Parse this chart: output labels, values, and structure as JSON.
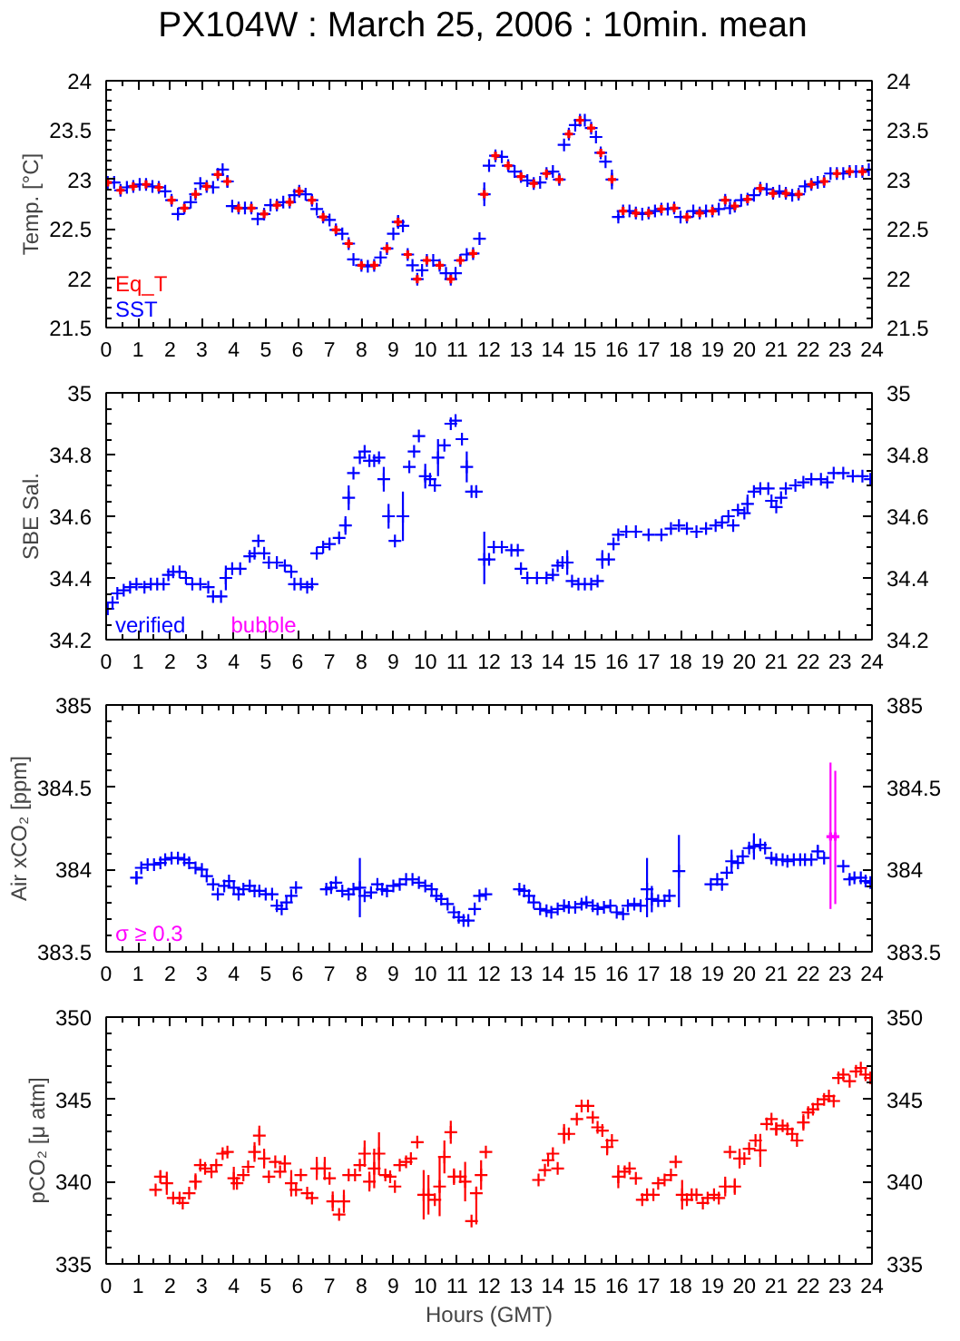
{
  "chart_data": [
    {
      "type": "scatter",
      "title": "PX104W : March 25, 2006 : 10min. mean",
      "ylabel": "Temp. [°C]",
      "xlim": [
        0,
        24
      ],
      "xticks": [
        0,
        1,
        2,
        3,
        4,
        5,
        6,
        7,
        8,
        9,
        10,
        11,
        12,
        13,
        14,
        15,
        16,
        17,
        18,
        19,
        20,
        21,
        22,
        23,
        24
      ],
      "ylim": [
        21.5,
        24
      ],
      "yticks": [
        21.5,
        22,
        22.5,
        23,
        23.5,
        24
      ],
      "y2lim": [
        21.5,
        24
      ],
      "y2ticks": [
        21.5,
        22,
        22.5,
        23,
        23.5,
        24
      ],
      "legend": "bottom left",
      "series": [
        {
          "name": "SST",
          "color": "#0000ff",
          "marker": "cross",
          "x": [
            0.05,
            0.25,
            0.45,
            0.65,
            0.85,
            1.05,
            1.25,
            1.45,
            1.65,
            1.85,
            2.05,
            2.25,
            2.45,
            2.65,
            2.8,
            2.95,
            3.15,
            3.35,
            3.5,
            3.65,
            3.8,
            3.95,
            4.15,
            4.35,
            4.55,
            4.75,
            4.95,
            5.15,
            5.35,
            5.55,
            5.75,
            5.9,
            6.05,
            6.25,
            6.45,
            6.6,
            6.8,
            7.0,
            7.2,
            7.4,
            7.6,
            7.75,
            8.0,
            8.2,
            8.4,
            8.6,
            8.8,
            9.0,
            9.15,
            9.3,
            9.45,
            9.6,
            9.75,
            9.9,
            10.05,
            10.25,
            10.45,
            10.65,
            10.8,
            10.95,
            11.1,
            11.3,
            11.5,
            11.7,
            11.85,
            12.0,
            12.2,
            12.4,
            12.6,
            12.8,
            13.0,
            13.2,
            13.4,
            13.6,
            13.8,
            14.0,
            14.2,
            14.35,
            14.5,
            14.7,
            14.85,
            15.0,
            15.2,
            15.35,
            15.5,
            15.65,
            15.85,
            16.05,
            16.2,
            16.4,
            16.6,
            16.8,
            17.0,
            17.2,
            17.4,
            17.6,
            17.8,
            18.0,
            18.2,
            18.4,
            18.6,
            18.8,
            19.0,
            19.2,
            19.4,
            19.55,
            19.7,
            19.9,
            20.1,
            20.3,
            20.5,
            20.7,
            20.9,
            21.1,
            21.3,
            21.5,
            21.7,
            21.9,
            22.1,
            22.3,
            22.5,
            22.7,
            22.9,
            23.1,
            23.3,
            23.5,
            23.7,
            23.9
          ],
          "values": [
            22.97,
            22.97,
            22.89,
            22.92,
            22.93,
            22.95,
            22.95,
            22.93,
            22.92,
            22.88,
            22.79,
            22.65,
            22.71,
            22.77,
            22.85,
            22.96,
            22.93,
            22.92,
            23.05,
            23.1,
            22.98,
            22.73,
            22.71,
            22.71,
            22.71,
            22.6,
            22.65,
            22.74,
            22.74,
            22.77,
            22.77,
            22.84,
            22.88,
            22.85,
            22.79,
            22.7,
            22.62,
            22.59,
            22.49,
            22.45,
            22.35,
            22.19,
            22.13,
            22.12,
            22.13,
            22.21,
            22.3,
            22.45,
            22.57,
            22.53,
            22.24,
            22.13,
            21.99,
            22.08,
            22.18,
            22.18,
            22.13,
            22.05,
            21.99,
            22.05,
            22.18,
            22.24,
            22.25,
            22.4,
            22.85,
            23.14,
            23.24,
            23.23,
            23.14,
            23.08,
            23.03,
            22.99,
            22.96,
            22.97,
            23.06,
            23.08,
            23.0,
            23.35,
            23.46,
            23.55,
            23.6,
            23.6,
            23.52,
            23.43,
            23.27,
            23.18,
            23.0,
            22.62,
            22.68,
            22.68,
            22.66,
            22.65,
            22.66,
            22.68,
            22.7,
            22.7,
            22.71,
            22.62,
            22.62,
            22.68,
            22.66,
            22.68,
            22.68,
            22.7,
            22.79,
            22.71,
            22.73,
            22.79,
            22.8,
            22.84,
            22.91,
            22.9,
            22.86,
            22.88,
            22.86,
            22.84,
            22.85,
            22.93,
            22.95,
            22.97,
            22.98,
            23.06,
            23.06,
            23.06,
            23.08,
            23.08,
            23.08,
            23.1
          ],
          "errors": [
            null,
            null,
            null,
            null,
            null,
            null,
            null,
            null,
            null,
            null,
            null,
            0.03,
            null,
            null,
            null,
            null,
            null,
            null,
            null,
            null,
            0.06,
            null,
            null,
            null,
            null,
            null,
            null,
            null,
            null,
            null,
            null,
            null,
            null,
            null,
            null,
            null,
            null,
            null,
            null,
            null,
            0.04,
            null,
            null,
            null,
            0.03,
            null,
            null,
            null,
            0.07,
            null,
            null,
            null,
            0.03,
            null,
            null,
            null,
            null,
            null,
            null,
            null,
            null,
            null,
            null,
            null,
            0.12,
            null,
            null,
            null,
            null,
            null,
            null,
            null,
            null,
            null,
            null,
            null,
            0.05,
            null,
            null,
            null,
            null,
            null,
            null,
            null,
            null,
            null,
            0.1,
            0.03,
            null,
            null,
            null,
            null,
            null,
            null,
            null,
            null,
            null,
            null,
            null,
            null,
            null,
            null,
            null,
            null,
            null,
            null,
            null,
            null,
            null,
            null,
            null,
            null,
            null,
            null,
            null,
            null,
            null,
            null,
            null,
            null,
            null,
            null,
            null,
            null,
            null,
            null,
            null,
            null
          ]
        },
        {
          "name": "Eq_T",
          "color": "#ff0000",
          "marker": "cross",
          "x": [
            0.05,
            0.45,
            0.85,
            1.25,
            1.65,
            2.05,
            2.45,
            2.8,
            3.15,
            3.5,
            3.8,
            4.15,
            4.55,
            4.95,
            5.35,
            5.75,
            6.05,
            6.45,
            6.8,
            7.2,
            7.6,
            8.0,
            8.4,
            8.8,
            9.15,
            9.45,
            9.75,
            10.05,
            10.45,
            10.8,
            11.1,
            11.5,
            11.85,
            12.2,
            12.6,
            13.0,
            13.4,
            13.8,
            14.2,
            14.5,
            14.85,
            15.2,
            15.5,
            15.85,
            16.2,
            16.6,
            17.0,
            17.4,
            17.8,
            18.2,
            18.6,
            19.0,
            19.4,
            19.7,
            20.1,
            20.5,
            20.9,
            21.3,
            21.7,
            22.1,
            22.5,
            22.9,
            23.3,
            23.7
          ],
          "values": [
            22.97,
            22.89,
            22.93,
            22.95,
            22.92,
            22.79,
            22.71,
            22.85,
            22.93,
            23.05,
            22.98,
            22.71,
            22.71,
            22.65,
            22.74,
            22.77,
            22.88,
            22.79,
            22.62,
            22.49,
            22.35,
            22.13,
            22.13,
            22.3,
            22.57,
            22.24,
            21.99,
            22.18,
            22.13,
            21.99,
            22.18,
            22.25,
            22.85,
            23.24,
            23.14,
            23.03,
            22.96,
            23.06,
            23.0,
            23.46,
            23.6,
            23.52,
            23.27,
            23.0,
            22.68,
            22.66,
            22.66,
            22.7,
            22.71,
            22.62,
            22.66,
            22.68,
            22.79,
            22.73,
            22.8,
            22.91,
            22.86,
            22.86,
            22.85,
            22.95,
            22.98,
            23.06,
            23.08,
            23.08
          ]
        }
      ]
    },
    {
      "type": "scatter",
      "ylabel": "SBE Sal.",
      "xlim": [
        0,
        24
      ],
      "xticks": [
        0,
        1,
        2,
        3,
        4,
        5,
        6,
        7,
        8,
        9,
        10,
        11,
        12,
        13,
        14,
        15,
        16,
        17,
        18,
        19,
        20,
        21,
        22,
        23,
        24
      ],
      "ylim": [
        34.2,
        35
      ],
      "yticks": [
        34.2,
        34.4,
        34.6,
        34.8,
        35
      ],
      "y2lim": [
        34.2,
        35
      ],
      "y2ticks": [
        34.2,
        34.4,
        34.6,
        34.8,
        35
      ],
      "legend": "bottom left",
      "series": [
        {
          "name": "bubble",
          "color": "#ff00ff",
          "marker": "cross"
        },
        {
          "name": "verified",
          "color": "#0000ff",
          "marker": "cross",
          "x": [
            0.05,
            0.2,
            0.35,
            0.55,
            0.75,
            0.95,
            1.2,
            1.4,
            1.6,
            1.8,
            1.95,
            2.1,
            2.3,
            2.5,
            2.7,
            2.95,
            3.2,
            3.35,
            3.6,
            3.75,
            3.95,
            4.2,
            4.5,
            4.65,
            4.77,
            4.95,
            5.1,
            5.35,
            5.6,
            5.8,
            5.9,
            6.1,
            6.3,
            6.45,
            6.6,
            6.8,
            7.0,
            7.3,
            7.5,
            7.6,
            7.75,
            7.95,
            8.1,
            8.25,
            8.4,
            8.55,
            8.7,
            8.85,
            9.05,
            9.3,
            9.5,
            9.65,
            9.8,
            10.0,
            10.15,
            10.3,
            10.4,
            10.6,
            10.8,
            10.95,
            11.15,
            11.3,
            11.45,
            11.6,
            11.85,
            12.0,
            12.15,
            12.4,
            12.7,
            12.9,
            13.0,
            13.2,
            13.5,
            13.8,
            14.0,
            14.15,
            14.3,
            14.45,
            14.6,
            14.8,
            15.0,
            15.2,
            15.4,
            15.55,
            15.75,
            15.9,
            16.05,
            16.3,
            16.6,
            17.0,
            17.4,
            17.7,
            17.95,
            18.2,
            18.5,
            18.8,
            19.1,
            19.3,
            19.5,
            19.65,
            19.8,
            20.0,
            20.1,
            20.3,
            20.5,
            20.75,
            20.85,
            21.0,
            21.15,
            21.3,
            21.6,
            21.85,
            22.1,
            22.4,
            22.6,
            22.8,
            23.1,
            23.4,
            23.7,
            23.95
          ],
          "values": [
            34.3,
            34.32,
            34.35,
            34.36,
            34.37,
            34.38,
            34.37,
            34.38,
            34.38,
            34.38,
            34.41,
            34.42,
            34.42,
            34.4,
            34.38,
            34.38,
            34.37,
            34.34,
            34.34,
            34.4,
            34.43,
            34.43,
            34.47,
            34.48,
            34.52,
            34.48,
            34.45,
            34.45,
            34.44,
            34.42,
            34.38,
            34.38,
            34.37,
            34.38,
            34.48,
            34.5,
            34.51,
            34.53,
            34.57,
            34.66,
            34.74,
            34.79,
            34.81,
            34.78,
            34.78,
            34.79,
            34.72,
            34.6,
            34.52,
            34.6,
            34.76,
            34.81,
            34.86,
            34.73,
            34.72,
            34.7,
            34.79,
            34.83,
            34.9,
            34.91,
            34.85,
            34.76,
            34.68,
            34.68,
            34.46,
            34.46,
            34.5,
            34.5,
            34.49,
            34.49,
            34.43,
            34.4,
            34.4,
            34.4,
            34.41,
            34.44,
            34.45,
            34.45,
            34.39,
            34.38,
            34.38,
            34.38,
            34.39,
            34.46,
            34.46,
            34.51,
            34.54,
            34.55,
            34.55,
            34.54,
            34.54,
            34.56,
            34.57,
            34.56,
            34.55,
            34.56,
            34.57,
            34.58,
            34.6,
            34.57,
            34.62,
            34.61,
            34.64,
            34.68,
            34.69,
            34.69,
            34.65,
            34.63,
            34.66,
            34.69,
            34.7,
            34.71,
            34.72,
            34.72,
            34.71,
            34.74,
            34.74,
            34.73,
            34.73,
            34.72
          ],
          "errors": [
            null,
            null,
            null,
            null,
            null,
            null,
            null,
            null,
            null,
            null,
            null,
            null,
            null,
            null,
            null,
            null,
            null,
            null,
            null,
            0.04,
            null,
            null,
            null,
            null,
            null,
            null,
            null,
            null,
            null,
            null,
            null,
            null,
            null,
            null,
            null,
            null,
            null,
            null,
            0.03,
            0.04,
            null,
            null,
            null,
            null,
            null,
            null,
            0.04,
            0.04,
            null,
            0.08,
            null,
            null,
            null,
            0.04,
            null,
            null,
            0.06,
            null,
            null,
            null,
            null,
            0.05,
            null,
            0.02,
            [
              34.38,
              34.55
            ],
            null,
            null,
            null,
            null,
            null,
            null,
            null,
            null,
            null,
            null,
            null,
            null,
            0.04,
            null,
            null,
            null,
            null,
            null,
            0.03,
            null,
            null,
            null,
            null,
            null,
            null,
            null,
            null,
            null,
            null,
            null,
            null,
            null,
            null,
            null,
            null,
            null,
            null,
            0.03,
            null,
            null,
            null,
            null,
            null,
            null,
            null,
            null,
            null,
            null,
            null,
            null,
            null,
            null,
            null,
            null,
            null
          ]
        }
      ]
    },
    {
      "type": "scatter",
      "ylabel": "Air xCO₂ [ppm]",
      "xlim": [
        0,
        24
      ],
      "xticks": [
        0,
        1,
        2,
        3,
        4,
        5,
        6,
        7,
        8,
        9,
        10,
        11,
        12,
        13,
        14,
        15,
        16,
        17,
        18,
        19,
        20,
        21,
        22,
        23,
        24
      ],
      "ylim": [
        383.5,
        385
      ],
      "yticks": [
        383.5,
        384,
        384.5,
        385
      ],
      "y2lim": [
        383.5,
        385
      ],
      "y2ticks": [
        383.5,
        384,
        384.5,
        385
      ],
      "legend": "bottom left",
      "series": [
        {
          "color": "#0000ff",
          "marker": "cross",
          "x": [
            0.95,
            1.1,
            1.3,
            1.5,
            1.7,
            1.85,
            2.05,
            2.25,
            2.45,
            2.6,
            2.8,
            3.0,
            3.15,
            3.35,
            3.5,
            3.7,
            3.85,
            4.0,
            4.15,
            4.3,
            4.5,
            4.65,
            4.8,
            5.0,
            5.2,
            5.35,
            5.5,
            5.65,
            5.8,
            5.95,
            6.9,
            7.05,
            7.2,
            7.4,
            7.6,
            7.75,
            7.95,
            8.1,
            8.3,
            8.5,
            8.65,
            8.8,
            9.0,
            9.2,
            9.4,
            9.6,
            9.8,
            10.0,
            10.2,
            10.35,
            10.5,
            10.7,
            10.9,
            11.05,
            11.2,
            11.35,
            11.55,
            11.7,
            11.9,
            12.95,
            13.1,
            13.25,
            13.4,
            13.6,
            13.8,
            13.95,
            14.15,
            14.35,
            14.5,
            14.7,
            14.9,
            15.05,
            15.25,
            15.4,
            15.6,
            15.8,
            16.0,
            16.2,
            16.35,
            16.55,
            16.75,
            16.95,
            17.1,
            17.3,
            17.5,
            17.65,
            17.95,
            18.95,
            19.15,
            19.3,
            19.45,
            19.6,
            19.8,
            19.95,
            20.15,
            20.3,
            20.5,
            20.65,
            20.85,
            21.0,
            21.2,
            21.35,
            21.55,
            21.75,
            21.9,
            22.1,
            22.3,
            22.5,
            23.1,
            23.3,
            23.45,
            23.65,
            23.8,
            23.95
          ],
          "values": [
            383.95,
            384.01,
            384.03,
            384.03,
            384.04,
            384.06,
            384.07,
            384.07,
            384.06,
            384.04,
            384.01,
            384.0,
            383.96,
            383.91,
            383.85,
            383.9,
            383.93,
            383.89,
            383.85,
            383.88,
            383.9,
            383.87,
            383.87,
            383.85,
            383.85,
            383.78,
            383.76,
            383.8,
            383.84,
            383.89,
            383.88,
            383.89,
            383.92,
            383.87,
            383.85,
            383.88,
            383.89,
            383.84,
            383.86,
            383.91,
            383.88,
            383.87,
            383.9,
            383.91,
            383.94,
            383.94,
            383.92,
            383.9,
            383.88,
            383.84,
            383.82,
            383.79,
            383.74,
            383.71,
            383.69,
            383.69,
            383.76,
            383.84,
            383.85,
            383.88,
            383.87,
            383.84,
            383.8,
            383.76,
            383.75,
            383.74,
            383.76,
            383.78,
            383.77,
            383.77,
            383.79,
            383.8,
            383.78,
            383.76,
            383.77,
            383.78,
            383.74,
            383.73,
            383.78,
            383.79,
            383.78,
            383.88,
            383.82,
            383.81,
            383.81,
            383.84,
            383.99,
            383.91,
            383.94,
            383.91,
            383.98,
            384.05,
            384.04,
            384.08,
            384.13,
            384.14,
            384.15,
            384.13,
            384.07,
            384.06,
            384.06,
            384.05,
            384.06,
            384.06,
            384.06,
            384.06,
            384.11,
            384.07,
            384.02,
            383.94,
            383.95,
            383.95,
            383.93,
            383.92
          ],
          "errors": [
            0.04,
            null,
            null,
            null,
            null,
            null,
            null,
            null,
            null,
            null,
            null,
            null,
            null,
            null,
            null,
            null,
            null,
            null,
            null,
            null,
            null,
            null,
            null,
            null,
            null,
            null,
            null,
            null,
            null,
            null,
            null,
            null,
            null,
            null,
            null,
            null,
            [
              383.71,
              384.07
            ],
            null,
            null,
            null,
            null,
            null,
            null,
            null,
            null,
            null,
            null,
            null,
            null,
            null,
            null,
            null,
            null,
            null,
            null,
            null,
            null,
            null,
            null,
            null,
            null,
            null,
            null,
            null,
            null,
            null,
            null,
            null,
            null,
            null,
            null,
            null,
            null,
            null,
            null,
            null,
            null,
            null,
            null,
            null,
            null,
            [
              383.71,
              384.07
            ],
            0.08,
            null,
            null,
            null,
            [
              383.77,
              384.21
            ],
            null,
            null,
            null,
            null,
            0.07,
            null,
            null,
            null,
            0.08,
            null,
            null,
            null,
            null,
            null,
            null,
            null,
            null,
            null,
            null,
            0.04,
            null,
            null,
            null,
            null,
            null,
            null,
            null
          ]
        },
        {
          "name": "σ ≥ 0.3",
          "color": "#ff00ff",
          "marker": "cross",
          "x": [
            22.7,
            22.85
          ],
          "values": [
            384.2,
            384.2
          ],
          "errors": [
            [
              383.76,
              384.65
            ],
            [
              383.79,
              384.6
            ]
          ]
        }
      ]
    },
    {
      "type": "scatter",
      "ylabel": "pCO₂ [μ atm]",
      "xlabel": "Hours (GMT)",
      "xlim": [
        0,
        24
      ],
      "xticks": [
        0,
        1,
        2,
        3,
        4,
        5,
        6,
        7,
        8,
        9,
        10,
        11,
        12,
        13,
        14,
        15,
        16,
        17,
        18,
        19,
        20,
        21,
        22,
        23,
        24
      ],
      "ylim": [
        335,
        350
      ],
      "yticks": [
        335,
        340,
        345,
        350
      ],
      "y2lim": [
        335,
        350
      ],
      "y2ticks": [
        335,
        340,
        345,
        350
      ],
      "series": [
        {
          "color": "#ff0000",
          "marker": "cross",
          "x": [
            1.55,
            1.7,
            1.9,
            2.1,
            2.3,
            2.4,
            2.6,
            2.8,
            2.95,
            3.1,
            3.3,
            3.45,
            3.65,
            3.8,
            4.0,
            4.1,
            4.3,
            4.45,
            4.65,
            4.8,
            4.95,
            5.1,
            5.3,
            5.45,
            5.6,
            5.8,
            5.95,
            6.1,
            6.3,
            6.45,
            6.6,
            6.85,
            7.0,
            7.1,
            7.3,
            7.45,
            7.6,
            7.8,
            7.95,
            8.1,
            8.25,
            8.4,
            8.55,
            8.75,
            8.9,
            9.05,
            9.2,
            9.4,
            9.55,
            9.75,
            9.95,
            10.1,
            10.3,
            10.45,
            10.6,
            10.8,
            10.9,
            11.1,
            11.25,
            11.45,
            11.6,
            11.75,
            11.9,
            13.55,
            13.75,
            13.85,
            14.0,
            14.15,
            14.35,
            14.5,
            14.75,
            14.9,
            15.1,
            15.25,
            15.4,
            15.55,
            15.7,
            15.85,
            16.05,
            16.25,
            16.4,
            16.6,
            16.8,
            16.95,
            17.15,
            17.3,
            17.5,
            17.7,
            17.85,
            18.05,
            18.2,
            18.35,
            18.5,
            18.7,
            18.85,
            19.05,
            19.2,
            19.4,
            19.55,
            19.7,
            19.85,
            20.0,
            20.15,
            20.35,
            20.5,
            20.7,
            20.85,
            21.0,
            21.2,
            21.35,
            21.5,
            21.65,
            21.85,
            22.0,
            22.15,
            22.3,
            22.5,
            22.65,
            22.8,
            22.95,
            23.1,
            23.3,
            23.5,
            23.65,
            23.8,
            23.95
          ],
          "values": [
            339.5,
            340.3,
            339.9,
            339.0,
            339.0,
            338.7,
            339.3,
            340.0,
            341.0,
            340.8,
            340.6,
            341.0,
            341.7,
            341.8,
            340.2,
            339.9,
            340.4,
            340.9,
            341.8,
            342.8,
            341.4,
            340.3,
            341.2,
            340.6,
            341.1,
            339.9,
            339.5,
            340.4,
            339.3,
            339.0,
            340.8,
            340.8,
            340.2,
            338.8,
            338.0,
            338.8,
            340.4,
            340.4,
            341.0,
            341.7,
            340.0,
            340.8,
            341.7,
            340.4,
            340.3,
            339.7,
            341.0,
            341.2,
            341.4,
            342.4,
            339.2,
            339.2,
            338.9,
            339.7,
            341.5,
            343.0,
            340.3,
            340.3,
            340.0,
            337.6,
            339.3,
            340.4,
            341.8,
            340.1,
            340.7,
            341.3,
            341.7,
            340.8,
            342.9,
            342.9,
            343.8,
            344.6,
            344.6,
            343.9,
            343.3,
            343.1,
            342.1,
            342.5,
            340.3,
            340.6,
            340.8,
            340.2,
            338.9,
            339.2,
            339.2,
            339.9,
            340.1,
            340.4,
            341.2,
            339.2,
            338.9,
            339.2,
            339.2,
            338.7,
            339.0,
            339.2,
            339.0,
            339.7,
            341.8,
            339.7,
            341.4,
            341.4,
            342.0,
            342.5,
            341.9,
            343.5,
            343.8,
            343.2,
            343.4,
            343.2,
            342.9,
            342.5,
            343.6,
            344.2,
            344.4,
            344.7,
            345.0,
            345.2,
            344.9,
            346.3,
            346.5,
            346.1,
            346.7,
            346.9,
            346.5,
            346.3
          ],
          "errors": [
            null,
            0.4,
            0.7,
            null,
            null,
            null,
            null,
            0.5,
            null,
            null,
            null,
            null,
            null,
            null,
            0.7,
            null,
            null,
            null,
            0.6,
            0.6,
            0.6,
            null,
            null,
            null,
            0.5,
            0.8,
            null,
            null,
            null,
            null,
            0.7,
            0.7,
            null,
            0.6,
            null,
            0.7,
            null,
            null,
            null,
            0.8,
            0.6,
            1.2,
            1.3,
            null,
            null,
            null,
            null,
            null,
            null,
            null,
            1.5,
            1.2,
            null,
            1.8,
            1.0,
            0.7,
            0.5,
            null,
            1.2,
            null,
            [
              337.4,
              339.7
            ],
            0.9,
            null,
            null,
            null,
            null,
            null,
            null,
            0.6,
            null,
            null,
            null,
            null,
            null,
            null,
            null,
            0.5,
            null,
            0.7,
            null,
            null,
            null,
            null,
            null,
            null,
            null,
            null,
            null,
            null,
            0.9,
            null,
            null,
            null,
            null,
            null,
            null,
            null,
            0.6,
            null,
            0.5,
            0.6,
            null,
            null,
            null,
            1.0,
            null,
            null,
            0.4,
            null,
            null,
            null,
            null,
            0.5,
            null,
            null,
            null,
            null,
            null,
            null,
            null,
            null,
            null,
            null,
            null,
            null,
            null
          ]
        }
      ]
    }
  ]
}
